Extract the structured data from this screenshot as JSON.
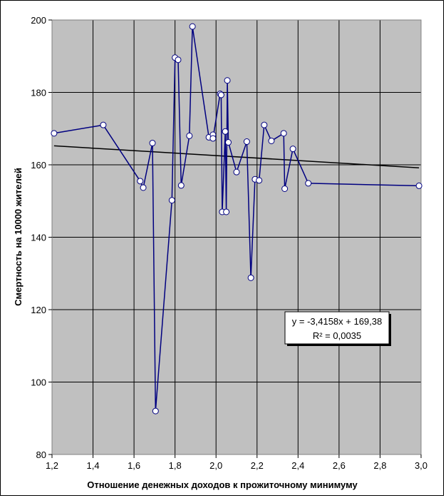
{
  "chart_data": {
    "type": "line",
    "xlabel": "Отношение денежных доходов к прожиточному минимуму",
    "ylabel": "Смертность на 10000 жителей",
    "xlim": [
      1.2,
      3.0
    ],
    "ylim": [
      80,
      200
    ],
    "x_ticks": [
      "1,2",
      "1,4",
      "1,6",
      "1,8",
      "2,0",
      "2,2",
      "2,4",
      "2,6",
      "2,8",
      "3,0"
    ],
    "y_ticks": [
      "80",
      "100",
      "120",
      "140",
      "160",
      "180",
      "200"
    ],
    "grid": true,
    "background_color": "#c0c0c0",
    "series_color": "#000080",
    "trendline_color": "#000000",
    "series": [
      {
        "x": [
          1.21,
          1.45,
          1.63,
          1.645,
          1.69,
          1.705,
          1.785,
          1.8,
          1.815,
          1.83,
          1.87,
          1.885,
          1.965,
          1.985,
          1.985,
          2.02,
          2.025,
          2.03,
          2.045,
          2.05,
          2.055,
          2.06,
          2.1,
          2.15,
          2.17,
          2.19,
          2.21,
          2.235,
          2.27,
          2.33,
          2.335,
          2.375,
          2.45,
          2.99
        ],
        "y": [
          168.7,
          171.0,
          155.5,
          153.7,
          166.0,
          92.0,
          150.2,
          189.6,
          189.0,
          154.3,
          168.0,
          198.2,
          167.6,
          168.3,
          167.3,
          179.6,
          179.3,
          147.0,
          169.2,
          147.0,
          183.3,
          166.2,
          158.0,
          166.4,
          128.8,
          156.0,
          155.7,
          171.0,
          166.6,
          168.7,
          153.4,
          164.4,
          154.9,
          154.2
        ]
      }
    ],
    "trendline": {
      "type": "linear",
      "slope": -3.4158,
      "intercept": 169.38,
      "equation": "y = -3,4158x + 169,38",
      "r2": "R² = 0,0035"
    }
  }
}
